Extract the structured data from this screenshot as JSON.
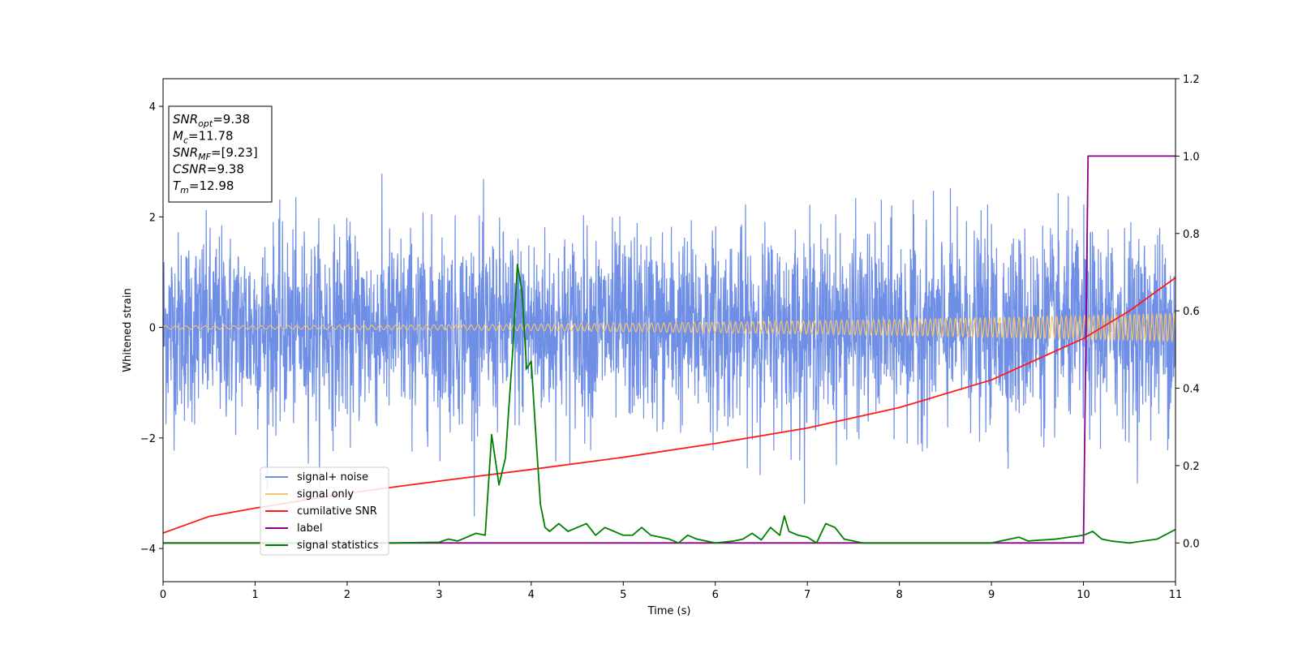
{
  "chart_data": {
    "type": "line",
    "xlabel": "Time (s)",
    "ylabel": "Whitened strain",
    "xlim": [
      0,
      11
    ],
    "ylim_left": [
      -4.6,
      4.5
    ],
    "ylim_right": [
      -0.1,
      1.2
    ],
    "x_ticks": [
      "0",
      "1",
      "2",
      "3",
      "4",
      "5",
      "6",
      "7",
      "8",
      "9",
      "10",
      "11"
    ],
    "y_ticks_left": [
      "−4",
      "−2",
      "0",
      "2",
      "4"
    ],
    "y_ticks_right": [
      "0.0",
      "0.2",
      "0.4",
      "0.6",
      "0.8",
      "1.0",
      "1.2"
    ],
    "grid": false,
    "legend_position": "lower-left",
    "info_box": {
      "lines": [
        {
          "sym": "SNR",
          "sub": "opt",
          "val": "=9.38"
        },
        {
          "sym": "M",
          "sub": "c",
          "val": "=11.78"
        },
        {
          "sym": "SNR",
          "sub": "MF",
          "val": "=[9.23]"
        },
        {
          "sym": "CSNR",
          "sub": "",
          "val": "=9.38"
        },
        {
          "sym": "T",
          "sub": "m",
          "val": "=12.98"
        }
      ]
    },
    "series": [
      {
        "name": "signal+ noise",
        "axis": "left",
        "color": "#6f8ee6",
        "noise_std": 0.85,
        "peak_range": [
          -4.15,
          4.08
        ]
      },
      {
        "name": "signal only",
        "axis": "left",
        "color": "#f2c26e",
        "amplitude_start": 0.03,
        "amplitude_end": 0.25
      },
      {
        "name": "cumilative SNR",
        "axis": "left",
        "color": "#ff1a1a",
        "x": [
          0,
          0.5,
          1,
          2,
          3,
          4,
          5,
          6,
          7,
          8,
          9,
          10,
          10.5,
          11
        ],
        "y": [
          -3.72,
          -3.42,
          -3.27,
          -3.0,
          -2.78,
          -2.57,
          -2.35,
          -2.1,
          -1.82,
          -1.45,
          -0.95,
          -0.2,
          0.3,
          0.9
        ]
      },
      {
        "name": "label",
        "axis": "right",
        "color": "#8b008b",
        "x": [
          0,
          10.0,
          10.05,
          11
        ],
        "y": [
          0,
          0,
          1,
          1
        ]
      },
      {
        "name": "signal statistics",
        "axis": "right",
        "color": "#008000",
        "x": [
          0,
          0.5,
          1,
          1.5,
          2,
          2.5,
          3,
          3.1,
          3.2,
          3.3,
          3.4,
          3.5,
          3.57,
          3.65,
          3.72,
          3.8,
          3.85,
          3.9,
          3.95,
          4.0,
          4.05,
          4.1,
          4.15,
          4.2,
          4.3,
          4.4,
          4.5,
          4.6,
          4.7,
          4.8,
          4.9,
          5.0,
          5.1,
          5.2,
          5.3,
          5.5,
          5.6,
          5.7,
          5.8,
          6.0,
          6.2,
          6.3,
          6.4,
          6.5,
          6.6,
          6.7,
          6.75,
          6.8,
          6.9,
          7.0,
          7.1,
          7.2,
          7.3,
          7.4,
          7.5,
          7.6,
          7.8,
          8.0,
          8.5,
          9.0,
          9.3,
          9.4,
          9.5,
          9.7,
          10.0,
          10.1,
          10.2,
          10.3,
          10.5,
          10.8,
          11.0
        ],
        "y": [
          0.0,
          0.0,
          0.0,
          0.0,
          0.0,
          0.0,
          0.002,
          0.01,
          0.005,
          0.015,
          0.025,
          0.02,
          0.28,
          0.15,
          0.22,
          0.5,
          0.72,
          0.65,
          0.45,
          0.47,
          0.28,
          0.1,
          0.04,
          0.03,
          0.05,
          0.03,
          0.04,
          0.05,
          0.02,
          0.04,
          0.03,
          0.02,
          0.02,
          0.04,
          0.02,
          0.01,
          0.0,
          0.02,
          0.01,
          0.0,
          0.005,
          0.01,
          0.025,
          0.008,
          0.04,
          0.02,
          0.07,
          0.03,
          0.02,
          0.015,
          0.0,
          0.05,
          0.04,
          0.01,
          0.005,
          0.0,
          0.0,
          0.0,
          0.0,
          0.0,
          0.015,
          0.005,
          0.007,
          0.01,
          0.02,
          0.03,
          0.01,
          0.005,
          0.0,
          0.01,
          0.035
        ]
      }
    ]
  }
}
